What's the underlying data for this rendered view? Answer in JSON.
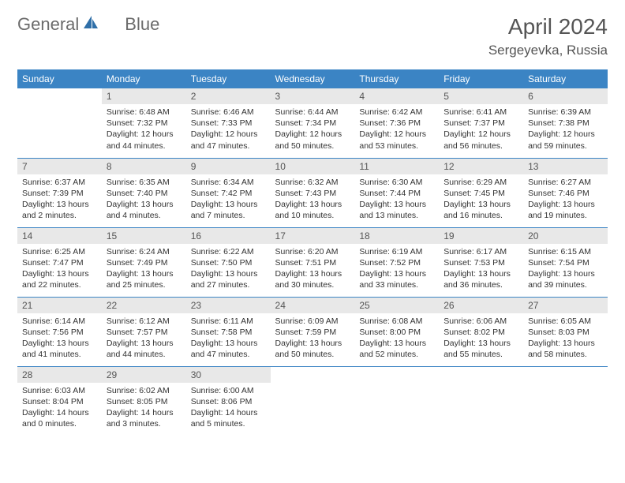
{
  "brand": {
    "part1": "General",
    "part2": "Blue"
  },
  "colors": {
    "header_bg": "#3b84c4",
    "header_fg": "#ffffff",
    "daynum_bg": "#e8e8e8",
    "row_border": "#3b84c4",
    "text": "#333333",
    "title": "#555555",
    "logo_gray": "#6b6b6b",
    "logo_blue": "#2f6fa8"
  },
  "title": "April 2024",
  "location": "Sergeyevka, Russia",
  "weekdays": [
    "Sunday",
    "Monday",
    "Tuesday",
    "Wednesday",
    "Thursday",
    "Friday",
    "Saturday"
  ],
  "weeks": [
    [
      null,
      {
        "n": "1",
        "sr": "6:48 AM",
        "ss": "7:32 PM",
        "dl": "12 hours and 44 minutes."
      },
      {
        "n": "2",
        "sr": "6:46 AM",
        "ss": "7:33 PM",
        "dl": "12 hours and 47 minutes."
      },
      {
        "n": "3",
        "sr": "6:44 AM",
        "ss": "7:34 PM",
        "dl": "12 hours and 50 minutes."
      },
      {
        "n": "4",
        "sr": "6:42 AM",
        "ss": "7:36 PM",
        "dl": "12 hours and 53 minutes."
      },
      {
        "n": "5",
        "sr": "6:41 AM",
        "ss": "7:37 PM",
        "dl": "12 hours and 56 minutes."
      },
      {
        "n": "6",
        "sr": "6:39 AM",
        "ss": "7:38 PM",
        "dl": "12 hours and 59 minutes."
      }
    ],
    [
      {
        "n": "7",
        "sr": "6:37 AM",
        "ss": "7:39 PM",
        "dl": "13 hours and 2 minutes."
      },
      {
        "n": "8",
        "sr": "6:35 AM",
        "ss": "7:40 PM",
        "dl": "13 hours and 4 minutes."
      },
      {
        "n": "9",
        "sr": "6:34 AM",
        "ss": "7:42 PM",
        "dl": "13 hours and 7 minutes."
      },
      {
        "n": "10",
        "sr": "6:32 AM",
        "ss": "7:43 PM",
        "dl": "13 hours and 10 minutes."
      },
      {
        "n": "11",
        "sr": "6:30 AM",
        "ss": "7:44 PM",
        "dl": "13 hours and 13 minutes."
      },
      {
        "n": "12",
        "sr": "6:29 AM",
        "ss": "7:45 PM",
        "dl": "13 hours and 16 minutes."
      },
      {
        "n": "13",
        "sr": "6:27 AM",
        "ss": "7:46 PM",
        "dl": "13 hours and 19 minutes."
      }
    ],
    [
      {
        "n": "14",
        "sr": "6:25 AM",
        "ss": "7:47 PM",
        "dl": "13 hours and 22 minutes."
      },
      {
        "n": "15",
        "sr": "6:24 AM",
        "ss": "7:49 PM",
        "dl": "13 hours and 25 minutes."
      },
      {
        "n": "16",
        "sr": "6:22 AM",
        "ss": "7:50 PM",
        "dl": "13 hours and 27 minutes."
      },
      {
        "n": "17",
        "sr": "6:20 AM",
        "ss": "7:51 PM",
        "dl": "13 hours and 30 minutes."
      },
      {
        "n": "18",
        "sr": "6:19 AM",
        "ss": "7:52 PM",
        "dl": "13 hours and 33 minutes."
      },
      {
        "n": "19",
        "sr": "6:17 AM",
        "ss": "7:53 PM",
        "dl": "13 hours and 36 minutes."
      },
      {
        "n": "20",
        "sr": "6:15 AM",
        "ss": "7:54 PM",
        "dl": "13 hours and 39 minutes."
      }
    ],
    [
      {
        "n": "21",
        "sr": "6:14 AM",
        "ss": "7:56 PM",
        "dl": "13 hours and 41 minutes."
      },
      {
        "n": "22",
        "sr": "6:12 AM",
        "ss": "7:57 PM",
        "dl": "13 hours and 44 minutes."
      },
      {
        "n": "23",
        "sr": "6:11 AM",
        "ss": "7:58 PM",
        "dl": "13 hours and 47 minutes."
      },
      {
        "n": "24",
        "sr": "6:09 AM",
        "ss": "7:59 PM",
        "dl": "13 hours and 50 minutes."
      },
      {
        "n": "25",
        "sr": "6:08 AM",
        "ss": "8:00 PM",
        "dl": "13 hours and 52 minutes."
      },
      {
        "n": "26",
        "sr": "6:06 AM",
        "ss": "8:02 PM",
        "dl": "13 hours and 55 minutes."
      },
      {
        "n": "27",
        "sr": "6:05 AM",
        "ss": "8:03 PM",
        "dl": "13 hours and 58 minutes."
      }
    ],
    [
      {
        "n": "28",
        "sr": "6:03 AM",
        "ss": "8:04 PM",
        "dl": "14 hours and 0 minutes."
      },
      {
        "n": "29",
        "sr": "6:02 AM",
        "ss": "8:05 PM",
        "dl": "14 hours and 3 minutes."
      },
      {
        "n": "30",
        "sr": "6:00 AM",
        "ss": "8:06 PM",
        "dl": "14 hours and 5 minutes."
      },
      null,
      null,
      null,
      null
    ]
  ],
  "labels": {
    "sunrise_prefix": "Sunrise: ",
    "sunset_prefix": "Sunset: ",
    "daylight_prefix": "Daylight: "
  }
}
